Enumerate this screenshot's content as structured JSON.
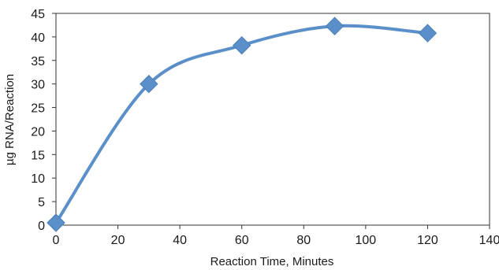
{
  "chart_data": {
    "type": "line",
    "title": "",
    "xlabel": "Reaction Time, Minutes",
    "ylabel": "µg RNA/Reaction",
    "xlim": [
      0,
      140
    ],
    "ylim": [
      0,
      45
    ],
    "x_ticks": [
      0,
      20,
      40,
      60,
      80,
      100,
      120,
      140
    ],
    "y_ticks": [
      0,
      5,
      10,
      15,
      20,
      25,
      30,
      35,
      40,
      45
    ],
    "grid": false,
    "smooth": true,
    "marker": "diamond",
    "series": [
      {
        "color": "#5b8fc9",
        "x": [
          0,
          30,
          60,
          90,
          120
        ],
        "y": [
          0.5,
          30,
          38.2,
          42.3,
          40.8
        ]
      }
    ]
  }
}
